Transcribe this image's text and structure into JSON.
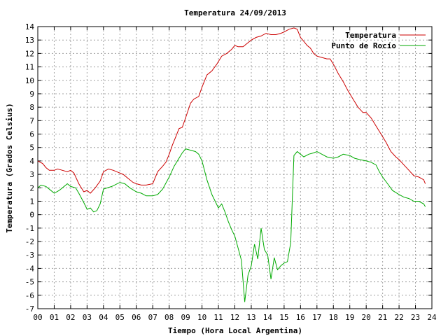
{
  "chart_data": {
    "type": "line",
    "title": "Temperatura 24/09/2013",
    "xlabel": "Tiempo (Hora Local Argentina)",
    "ylabel": "Temperatura (Grados Celsius)",
    "xlim": [
      0,
      24
    ],
    "ylim": [
      -7,
      14
    ],
    "x_ticks": [
      "00",
      "01",
      "02",
      "03",
      "04",
      "05",
      "06",
      "07",
      "08",
      "09",
      "10",
      "11",
      "12",
      "13",
      "14",
      "15",
      "16",
      "17",
      "18",
      "19",
      "20",
      "21",
      "22",
      "23",
      "24"
    ],
    "y_ticks": [
      -7,
      -6,
      -5,
      -4,
      -3,
      -2,
      -1,
      0,
      1,
      2,
      3,
      4,
      5,
      6,
      7,
      8,
      9,
      10,
      11,
      12,
      13,
      14
    ],
    "grid": true,
    "legend_position": "top-right",
    "series": [
      {
        "name": "Temperatura",
        "color": "#cc0000",
        "x": [
          0,
          0.3,
          0.5,
          0.7,
          1,
          1.2,
          1.5,
          1.8,
          2,
          2.2,
          2.5,
          2.8,
          3,
          3.2,
          3.5,
          3.8,
          4,
          4.3,
          4.6,
          4.8,
          5,
          5.2,
          5.5,
          5.8,
          6,
          6.3,
          6.6,
          7,
          7.3,
          7.6,
          7.8,
          8,
          8.2,
          8.4,
          8.6,
          8.8,
          9,
          9.3,
          9.5,
          9.8,
          10,
          10.3,
          10.6,
          10.9,
          11.2,
          11.5,
          11.8,
          12,
          12.2,
          12.5,
          12.8,
          13,
          13.3,
          13.6,
          13.9,
          14.2,
          14.5,
          14.8,
          15,
          15.3,
          15.6,
          15.8,
          16,
          16.2,
          16.4,
          16.6,
          16.8,
          17,
          17.3,
          17.6,
          17.8,
          18,
          18.3,
          18.6,
          18.9,
          19.2,
          19.5,
          19.8,
          20,
          20.3,
          20.6,
          20.9,
          21.2,
          21.5,
          21.8,
          22,
          22.3,
          22.6,
          22.9,
          23.2,
          23.5,
          23.6
        ],
        "values": [
          4.0,
          3.8,
          3.5,
          3.3,
          3.3,
          3.4,
          3.3,
          3.2,
          3.3,
          3.1,
          2.3,
          1.7,
          1.8,
          1.6,
          2.0,
          2.5,
          3.2,
          3.4,
          3.3,
          3.2,
          3.1,
          3.0,
          2.7,
          2.4,
          2.3,
          2.2,
          2.2,
          2.3,
          3.2,
          3.6,
          3.9,
          4.5,
          5.2,
          5.8,
          6.4,
          6.5,
          7.2,
          8.3,
          8.6,
          8.8,
          9.5,
          10.4,
          10.7,
          11.2,
          11.8,
          12.0,
          12.3,
          12.6,
          12.5,
          12.5,
          12.8,
          13.0,
          13.2,
          13.3,
          13.5,
          13.4,
          13.4,
          13.5,
          13.6,
          13.8,
          13.9,
          13.8,
          13.2,
          12.9,
          12.6,
          12.4,
          12.0,
          11.8,
          11.7,
          11.6,
          11.6,
          11.2,
          10.5,
          9.9,
          9.2,
          8.6,
          8.0,
          7.6,
          7.6,
          7.2,
          6.6,
          6.0,
          5.4,
          4.7,
          4.3,
          4.1,
          3.7,
          3.3,
          2.9,
          2.8,
          2.6,
          2.3
        ]
      },
      {
        "name": "Punto de Rocío",
        "color": "#00aa00",
        "x": [
          0,
          0.2,
          0.5,
          0.7,
          1,
          1.3,
          1.5,
          1.8,
          2,
          2.3,
          2.5,
          2.8,
          3,
          3.2,
          3.4,
          3.6,
          3.8,
          4,
          4.5,
          5,
          5.3,
          5.6,
          6,
          6.3,
          6.6,
          7,
          7.3,
          7.6,
          8,
          8.3,
          8.6,
          8.8,
          9,
          9.3,
          9.6,
          9.8,
          10,
          10.3,
          10.6,
          10.8,
          11,
          11.2,
          11.4,
          11.6,
          11.8,
          12,
          12.2,
          12.4,
          12.6,
          12.8,
          13,
          13.2,
          13.4,
          13.6,
          13.8,
          14,
          14.2,
          14.4,
          14.6,
          14.8,
          15,
          15.2,
          15.4,
          15.6,
          15.8,
          16,
          16.2,
          16.5,
          16.8,
          17,
          17.3,
          17.6,
          18,
          18.3,
          18.6,
          19,
          19.3,
          19.6,
          20,
          20.3,
          20.6,
          20.8,
          21,
          21.3,
          21.6,
          22,
          22.3,
          22.6,
          22.9,
          23.2,
          23.5,
          23.6
        ],
        "values": [
          2.0,
          2.2,
          2.1,
          1.9,
          1.6,
          1.8,
          2.0,
          2.3,
          2.1,
          2.0,
          1.6,
          0.9,
          0.4,
          0.5,
          0.2,
          0.3,
          0.8,
          1.9,
          2.1,
          2.4,
          2.3,
          2.0,
          1.7,
          1.6,
          1.4,
          1.4,
          1.5,
          1.9,
          2.8,
          3.6,
          4.2,
          4.6,
          4.9,
          4.8,
          4.7,
          4.5,
          4.0,
          2.6,
          1.5,
          1.0,
          0.5,
          0.8,
          0.2,
          -0.5,
          -1.1,
          -1.6,
          -2.5,
          -3.4,
          -6.5,
          -4.5,
          -3.8,
          -2.2,
          -3.3,
          -1.0,
          -2.6,
          -3.0,
          -4.8,
          -3.2,
          -4.1,
          -3.8,
          -3.6,
          -3.5,
          -2.1,
          4.4,
          4.7,
          4.5,
          4.3,
          4.5,
          4.6,
          4.7,
          4.5,
          4.3,
          4.2,
          4.3,
          4.5,
          4.4,
          4.2,
          4.1,
          4.0,
          3.9,
          3.7,
          3.2,
          2.8,
          2.3,
          1.8,
          1.5,
          1.3,
          1.2,
          1.0,
          1.0,
          0.8,
          0.6
        ]
      }
    ]
  }
}
